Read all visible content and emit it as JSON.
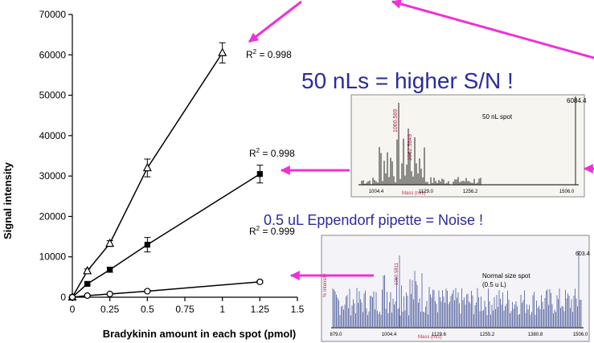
{
  "chart_data": {
    "type": "line",
    "xlabel": "Bradykinin amount in each spot (pmol)",
    "ylabel": "Signal intensity",
    "xlim": [
      0,
      1.5
    ],
    "xticks": [
      0,
      0.25,
      0.5,
      0.75,
      1,
      1.25,
      1.5
    ],
    "ylim": [
      0,
      70000
    ],
    "yticks": [
      0,
      10000,
      20000,
      30000,
      40000,
      50000,
      60000,
      70000
    ],
    "series": [
      {
        "marker": "triangle",
        "color": "#000000",
        "x": [
          0,
          0.1,
          0.25,
          0.5,
          1
        ],
        "values": [
          0,
          6500,
          13300,
          32000,
          60500
        ],
        "errors": [
          0,
          500,
          700,
          2200,
          2500
        ]
      },
      {
        "marker": "square",
        "color": "#000000",
        "x": [
          0,
          0.1,
          0.25,
          0.5,
          1.25
        ],
        "values": [
          0,
          3300,
          6800,
          13000,
          30500
        ],
        "errors": [
          0,
          300,
          600,
          1800,
          2200
        ]
      },
      {
        "marker": "circle",
        "color": "#000000",
        "x": [
          0,
          0.1,
          0.25,
          0.5,
          1.25
        ],
        "values": [
          0,
          400,
          800,
          1500,
          3800
        ],
        "errors": [
          0,
          100,
          150,
          250,
          350
        ]
      }
    ],
    "annotations": [
      {
        "base": "R",
        "sup": "2",
        "rest": " = 0.998"
      },
      {
        "base": "R",
        "sup": "2",
        "rest": " = 0.998"
      },
      {
        "base": "R",
        "sup": "2",
        "rest": " = 0.999"
      }
    ]
  },
  "slide": {
    "headline1": "50 nLs = higher S/N !",
    "headline2": "0.5 uL Eppendorf  pipette = Noise !",
    "spectrum1": {
      "label": "50 nL spot",
      "peaks": [
        "1060.569",
        "1062.5649"
      ],
      "corner": "6084.4",
      "xlabel": "Mass (m/z)",
      "ticks": [
        "1004.4",
        "1129.0",
        "1256.2",
        "1506.0"
      ]
    },
    "spectrum2": {
      "label": "Normal size spot",
      "sublabel": "(0.5 u L)",
      "peaks": [
        "1060.5811"
      ],
      "ylabel": "% Intensity",
      "corner": "603.4",
      "xlabel": "Mass (m/z)",
      "ticks": [
        "879.0",
        "1004.4",
        "1129.6",
        "1255.2",
        "1380.8",
        "1506.0"
      ]
    }
  }
}
